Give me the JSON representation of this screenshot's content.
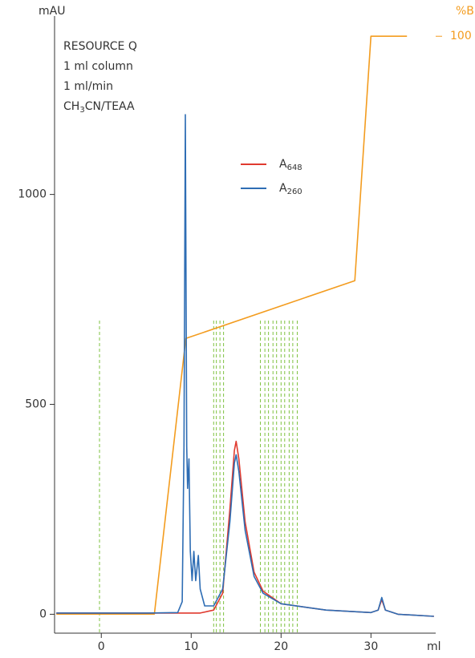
{
  "chart_data": {
    "type": "line",
    "annotations": [
      "RESOURCE Q",
      "1 ml column",
      "1 ml/min"
    ],
    "annotation_formula": {
      "text": "CH",
      "sub": "3",
      "rest": "CN/TEAA"
    },
    "xlabel": "ml",
    "ylabel": "mAU",
    "y2label": "%B",
    "xlim": [
      -5.2,
      37.2
    ],
    "xticks": [
      0,
      10,
      20,
      30
    ],
    "ylim": [
      -45,
      1425
    ],
    "yticks": [
      0,
      500,
      1000
    ],
    "y2lim": [
      -3.3,
      103.5
    ],
    "y2ticks": [
      100
    ],
    "fractions": [
      -0.2,
      12.5,
      12.8,
      13.2,
      13.6,
      17.7,
      18.2,
      18.6,
      19.1,
      19.5,
      20.0,
      20.4,
      20.9,
      21.3,
      21.8
    ],
    "fraction_color": "#7fc241",
    "legend": "upper center",
    "series": [
      {
        "name": "%B",
        "color": "#f39c1f",
        "axis": "y2",
        "x": [
          -5,
          5.9,
          9.4,
          28.2,
          30.0,
          34.0
        ],
        "values": [
          0,
          0,
          47.7,
          57.7,
          100,
          100
        ]
      },
      {
        "name": "A",
        "name_sub": "648",
        "color": "#e03a2f",
        "x": [
          -5,
          11,
          12.5,
          13.5,
          14.3,
          14.8,
          15.0,
          15.3,
          16,
          17,
          18,
          20,
          25,
          30,
          30.8,
          31.2,
          31.6,
          33,
          37
        ],
        "values": [
          3,
          3,
          10,
          50,
          250,
          390,
          412,
          370,
          220,
          100,
          55,
          25,
          10,
          4,
          10,
          35,
          10,
          0,
          -5
        ]
      },
      {
        "name": "A",
        "name_sub": "260",
        "color": "#2e6db4",
        "x": [
          -5,
          5,
          8.5,
          9.0,
          9.2,
          9.35,
          9.5,
          9.6,
          9.75,
          9.9,
          10.1,
          10.3,
          10.5,
          10.8,
          11.0,
          11.5,
          12.5,
          13.5,
          14.3,
          14.8,
          15.0,
          15.3,
          16,
          17,
          18,
          20,
          25,
          30,
          30.8,
          31.2,
          31.6,
          33,
          37
        ],
        "values": [
          3,
          3,
          4,
          30,
          400,
          1190,
          400,
          300,
          370,
          150,
          80,
          150,
          80,
          140,
          60,
          20,
          20,
          60,
          220,
          360,
          380,
          340,
          200,
          90,
          50,
          25,
          10,
          4,
          10,
          40,
          10,
          0,
          -5
        ]
      }
    ]
  }
}
